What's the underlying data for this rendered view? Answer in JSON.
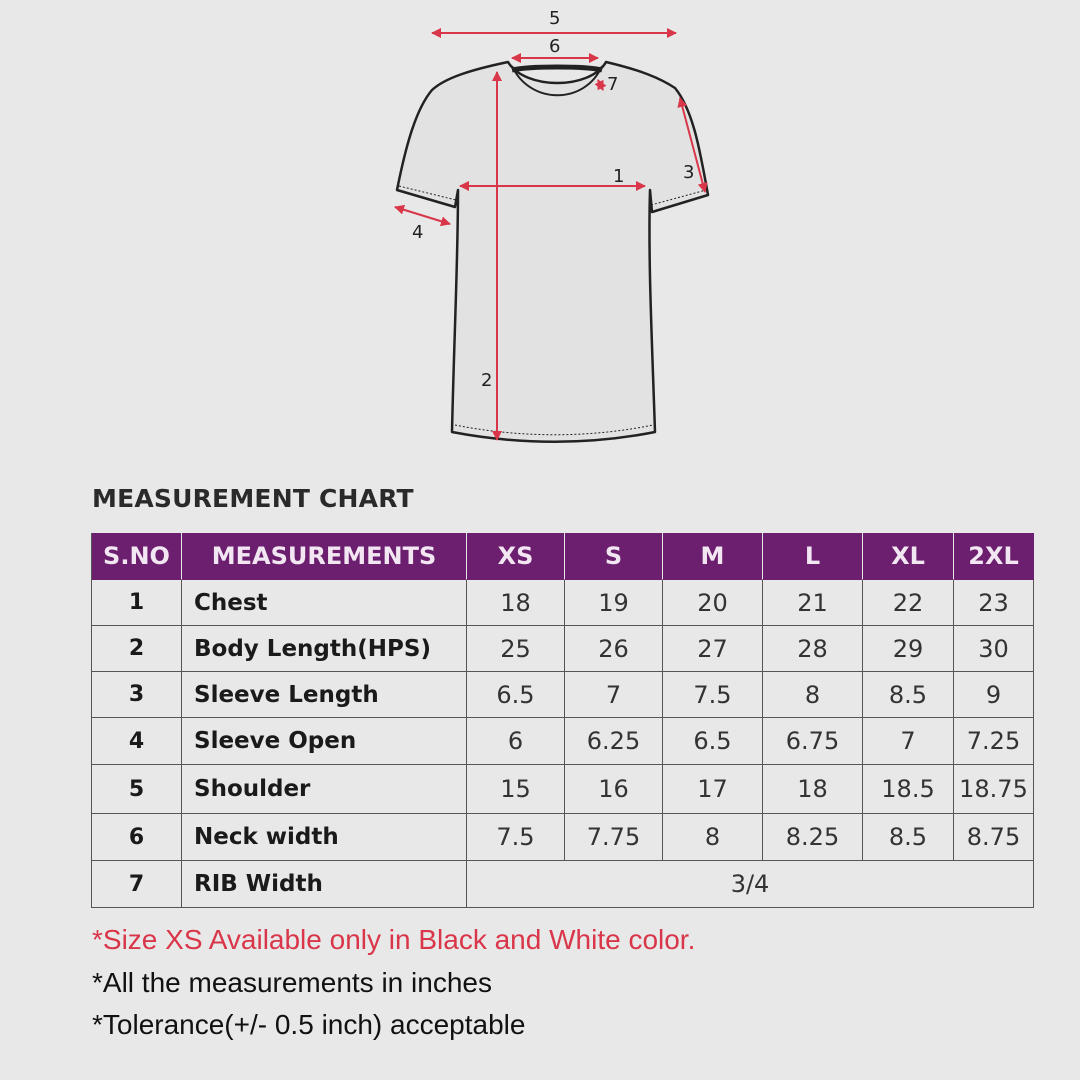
{
  "diagram": {
    "labels": [
      "1",
      "2",
      "3",
      "4",
      "5",
      "6",
      "7"
    ],
    "accent": "#d9364a"
  },
  "title": "MEASUREMENT CHART",
  "header_color": "#6b1f6e",
  "table": {
    "headers": [
      "S.NO",
      "MEASUREMENTS",
      "XS",
      "S",
      "M",
      "L",
      "XL",
      "2XL"
    ],
    "rows": [
      {
        "sno": "1",
        "name": "Chest",
        "values": [
          "18",
          "19",
          "20",
          "21",
          "22",
          "23"
        ]
      },
      {
        "sno": "2",
        "name": "Body Length(HPS)",
        "values": [
          "25",
          "26",
          "27",
          "28",
          "29",
          "30"
        ]
      },
      {
        "sno": "3",
        "name": "Sleeve Length",
        "values": [
          "6.5",
          "7",
          "7.5",
          "8",
          "8.5",
          "9"
        ]
      },
      {
        "sno": "4",
        "name": "Sleeve Open",
        "values": [
          "6",
          "6.25",
          "6.5",
          "6.75",
          "7",
          "7.25"
        ]
      },
      {
        "sno": "5",
        "name": "Shoulder",
        "values": [
          "15",
          "16",
          "17",
          "18",
          "18.5",
          "18.75"
        ]
      },
      {
        "sno": "6",
        "name": "Neck width",
        "values": [
          "7.5",
          "7.75",
          "8",
          "8.25",
          "8.5",
          "8.75"
        ]
      },
      {
        "sno": "7",
        "name": "RIB Width",
        "merged": "3/4"
      }
    ]
  },
  "notes": [
    "*Size XS Available only in Black and White color.",
    "*All the measurements in inches",
    "*Tolerance(+/- 0.5 inch) acceptable"
  ],
  "note_colors": [
    "#d9364a",
    "#111111",
    "#111111"
  ]
}
